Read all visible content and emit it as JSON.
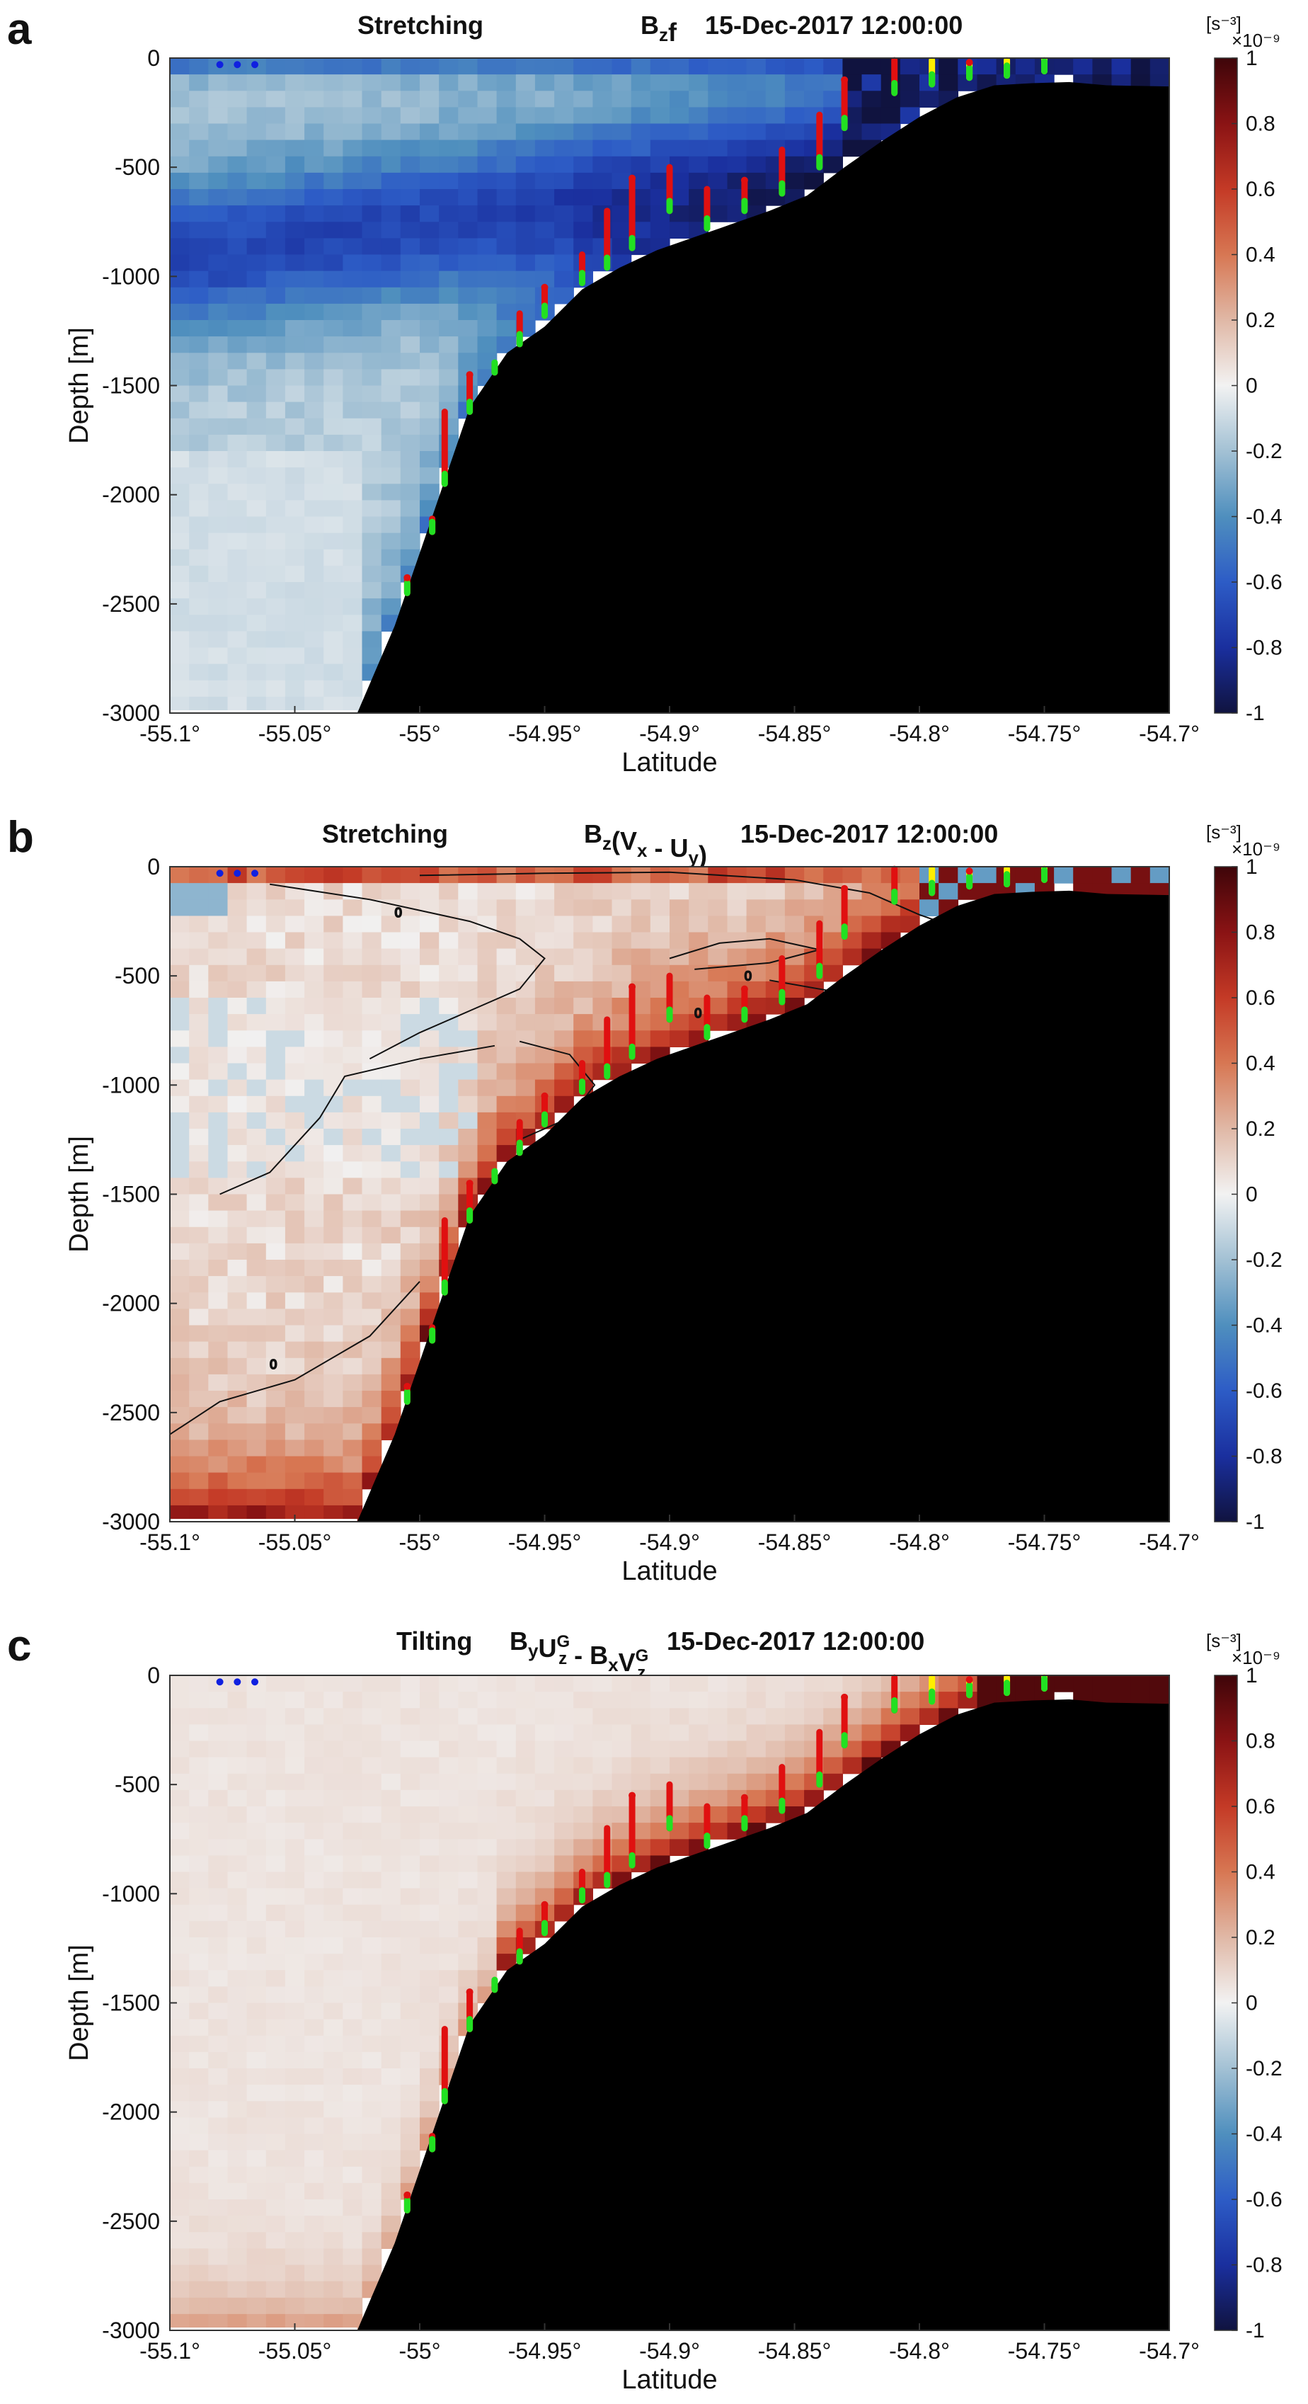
{
  "chart_data": [
    {
      "type": "heatmap",
      "panel": "a",
      "title_main": "Stretching",
      "title_expr": {
        "parts": [
          {
            "t": "B"
          },
          {
            "t": "z",
            "sub": true
          },
          {
            "t": "f"
          }
        ]
      },
      "title_time": "15-Dec-2017 12:00:00",
      "xlabel": "Latitude",
      "ylabel": "Depth [m]",
      "xlim": [
        -55.1,
        -54.7
      ],
      "ylim": [
        -3000,
        0
      ],
      "xticks": [
        -55.1,
        -55.05,
        -55.0,
        -54.95,
        -54.9,
        -54.85,
        -54.8,
        -54.75,
        -54.7
      ],
      "xtick_labels": [
        "-55.1°",
        "-55.05°",
        "-55°",
        "-54.95°",
        "-54.9°",
        "-54.85°",
        "-54.8°",
        "-54.75°",
        "-54.7°"
      ],
      "yticks": [
        0,
        -500,
        -1000,
        -1500,
        -2000,
        -2500,
        -3000
      ],
      "ytick_labels": [
        "0",
        "-500",
        "-1000",
        "-1500",
        "-2000",
        "-2500",
        "-3000"
      ],
      "colorbar": {
        "unit": "[s⁻³]",
        "multiplier": "×10⁻⁹",
        "range": [
          -1,
          1
        ],
        "ticks": [
          "1",
          "0.8",
          "0.6",
          "0.4",
          "0.2",
          "0",
          "-0.2",
          "-0.4",
          "-0.6",
          "-0.8",
          "-1"
        ]
      },
      "field": "negative"
    },
    {
      "type": "heatmap",
      "panel": "b",
      "title_main": "Stretching",
      "title_expr": {
        "parts": [
          {
            "t": "B"
          },
          {
            "t": "z",
            "sub": true
          },
          {
            "t": "(V"
          },
          {
            "t": "x",
            "sub": true
          },
          {
            "t": " - U"
          },
          {
            "t": "y",
            "sub": true
          },
          {
            "t": ")"
          }
        ]
      },
      "title_time": "15-Dec-2017 12:00:00",
      "xlabel": "Latitude",
      "ylabel": "Depth [m]",
      "xlim": [
        -55.1,
        -54.7
      ],
      "ylim": [
        -3000,
        0
      ],
      "xticks": [
        -55.1,
        -55.05,
        -55.0,
        -54.95,
        -54.9,
        -54.85,
        -54.8,
        -54.75,
        -54.7
      ],
      "xtick_labels": [
        "-55.1°",
        "-55.05°",
        "-55°",
        "-54.95°",
        "-54.9°",
        "-54.85°",
        "-54.8°",
        "-54.75°",
        "-54.7°"
      ],
      "yticks": [
        0,
        -500,
        -1000,
        -1500,
        -2000,
        -2500,
        -3000
      ],
      "ytick_labels": [
        "0",
        "-500",
        "-1000",
        "-1500",
        "-2000",
        "-2500",
        "-3000"
      ],
      "colorbar": {
        "unit": "[s⁻³]",
        "multiplier": "×10⁻⁹",
        "range": [
          -1,
          1
        ],
        "ticks": [
          "1",
          "0.8",
          "0.6",
          "0.4",
          "0.2",
          "0",
          "-0.2",
          "-0.4",
          "-0.6",
          "-0.8",
          "-1"
        ]
      },
      "field": "mixed",
      "contour_label": "0"
    },
    {
      "type": "heatmap",
      "panel": "c",
      "title_main": "Tilting",
      "title_expr": {
        "parts": [
          {
            "t": "B"
          },
          {
            "t": "y",
            "sub": true
          },
          {
            "t": "U"
          },
          {
            "t": "z",
            "sub": true,
            "sup": "G"
          },
          {
            "t": " - B"
          },
          {
            "t": "x",
            "sub": true
          },
          {
            "t": "V"
          },
          {
            "t": "z",
            "sub": true,
            "sup": "G"
          }
        ]
      },
      "title_time": "15-Dec-2017 12:00:00",
      "xlabel": "Latitude",
      "ylabel": "Depth [m]",
      "xlim": [
        -55.1,
        -54.7
      ],
      "ylim": [
        -3000,
        0
      ],
      "xticks": [
        -55.1,
        -55.05,
        -55.0,
        -54.95,
        -54.9,
        -54.85,
        -54.8,
        -54.75,
        -54.7
      ],
      "xtick_labels": [
        "-55.1°",
        "-55.05°",
        "-55°",
        "-54.95°",
        "-54.9°",
        "-54.85°",
        "-54.8°",
        "-54.75°",
        "-54.7°"
      ],
      "yticks": [
        0,
        -500,
        -1000,
        -1500,
        -2000,
        -2500,
        -3000
      ],
      "ytick_labels": [
        "0",
        "-500",
        "-1000",
        "-1500",
        "-2000",
        "-2500",
        "-3000"
      ],
      "colorbar": {
        "unit": "[s⁻³]",
        "multiplier": "×10⁻⁹",
        "range": [
          -1,
          1
        ],
        "ticks": [
          "1",
          "0.8",
          "0.6",
          "0.4",
          "0.2",
          "0",
          "-0.2",
          "-0.4",
          "-0.6",
          "-0.8",
          "-1"
        ]
      },
      "field": "positive"
    }
  ],
  "bathymetry": {
    "lat": [
      -55.1,
      -55.025,
      -55.01,
      -54.995,
      -54.98,
      -54.965,
      -54.95,
      -54.935,
      -54.92,
      -54.905,
      -54.89,
      -54.875,
      -54.86,
      -54.845,
      -54.83,
      -54.815,
      -54.8,
      -54.785,
      -54.77,
      -54.755,
      -54.74,
      -54.725,
      -54.7
    ],
    "depth": [
      -3000,
      -3000,
      -2600,
      -2100,
      -1600,
      -1350,
      -1230,
      -1060,
      -960,
      -880,
      -820,
      -760,
      -700,
      -630,
      -500,
      -380,
      -270,
      -180,
      -125,
      -115,
      -110,
      -125,
      -130
    ]
  },
  "colors": {
    "land": "#000000",
    "grid_neg": "#0b1f6e",
    "grid_pos": "#4a0010",
    "marker_red": "#e01010",
    "marker_green": "#22e022",
    "marker_yellow": "#ffee00",
    "marker_blue": "#1020e0"
  }
}
